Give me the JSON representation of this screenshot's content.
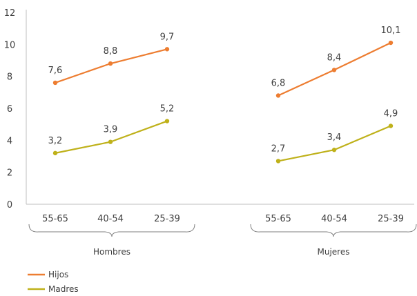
{
  "chart_data": {
    "type": "line",
    "ylim": [
      0,
      12
    ],
    "y_ticks": [
      0,
      2,
      4,
      6,
      8,
      10,
      12
    ],
    "groups": [
      {
        "name": "Hombres",
        "categories": [
          "55-65",
          "40-54",
          "25-39"
        ]
      },
      {
        "name": "Mujeres",
        "categories": [
          "55-65",
          "40-54",
          "25-39"
        ]
      }
    ],
    "series": [
      {
        "name": "Hijos",
        "color": "#ED7D31",
        "values": [
          [
            7.6,
            8.8,
            9.7
          ],
          [
            6.8,
            8.4,
            10.1
          ]
        ],
        "labels": [
          [
            "7,6",
            "8,8",
            "9,7"
          ],
          [
            "6,8",
            "8,4",
            "10,1"
          ]
        ]
      },
      {
        "name": "Madres",
        "color": "#BFB11A",
        "values": [
          [
            3.2,
            3.9,
            5.2
          ],
          [
            2.7,
            3.4,
            4.9
          ]
        ],
        "labels": [
          [
            "3,2",
            "3,9",
            "5,2"
          ],
          [
            "2,7",
            "3,4",
            "4,9"
          ]
        ]
      }
    ],
    "legend": {
      "placement": "bottom-left"
    },
    "grid": false
  }
}
